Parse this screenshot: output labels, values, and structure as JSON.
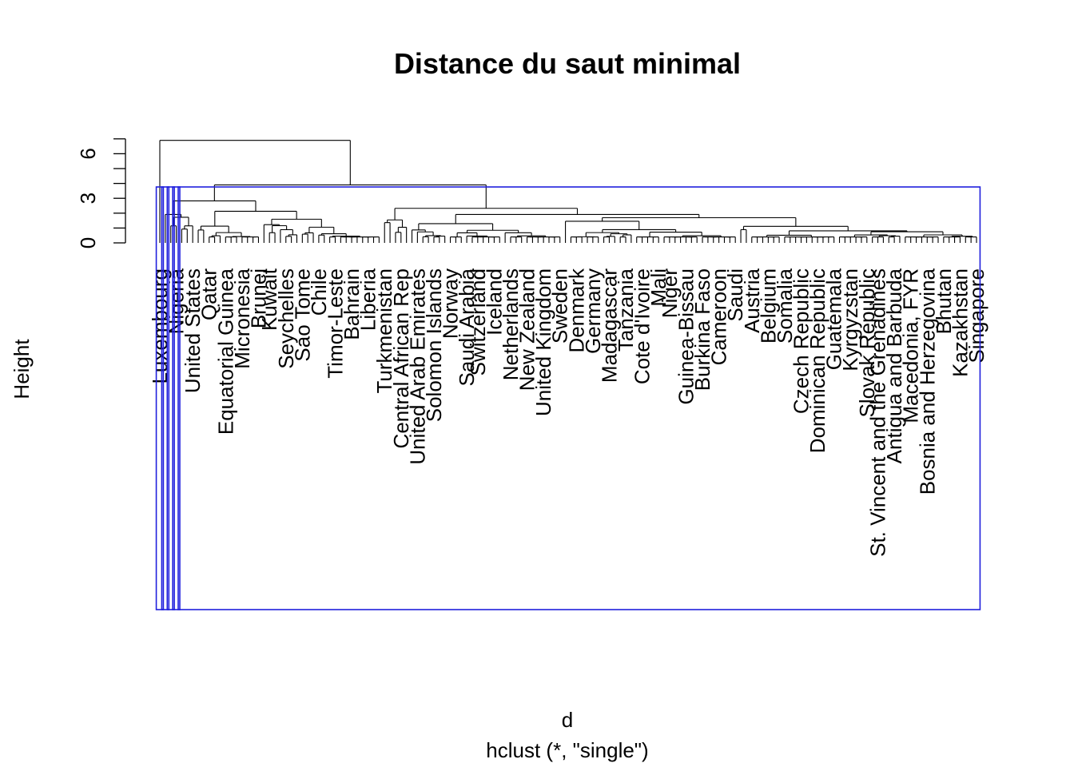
{
  "chart_data": {
    "type": "dendrogram",
    "title": "Distance du saut minimal",
    "xlabel": "d",
    "sub": "hclust (*, \"single\")",
    "ylabel": "Height",
    "ylim": [
      0,
      7
    ],
    "yticks": [
      0,
      3,
      6
    ],
    "box_color": "#2020dd",
    "leaves": [
      "Luxembourg",
      "Nigeria",
      "United States",
      "Qatar",
      "Equatorial Guinea",
      "Micronesia",
      "Brunei",
      "Kuwait",
      "Seychelles",
      "Sao Tome",
      "Chile",
      "Timor-Leste",
      "Bahrain",
      "Liberia",
      "Turkmenistan",
      "Central African Rep",
      "United Arab Emirates",
      "Solomon Islands",
      "Norway",
      "Saudi Arabia",
      "Switzerland",
      "Iceland",
      "Netherlands",
      "New Zealand",
      "United Kingdom",
      "Sweden",
      "Denmark",
      "Germany",
      "Madagascar",
      "Tanzania",
      "Cote d'Ivoire",
      "Mali",
      "Niger",
      "Guinea-Bissau",
      "Burkina Faso",
      "Cameroon",
      "Saudi",
      "Austria",
      "Belgium",
      "Somalia",
      "Czech Republic",
      "Dominican Republic",
      "Guatemala",
      "Kyrgyzstan",
      "Slovak Republic",
      "St. Vincent and the Grenadines",
      "Antigua and Barbuda",
      "Macedonia, FYR",
      "Bosnia and Herzegovina",
      "Bhutan",
      "Kazakhstan",
      "Singapore"
    ],
    "leaf_count": 150,
    "merge_heights": [
      6.9,
      3.9,
      3.7,
      3.1,
      2.4,
      1.4,
      0.9
    ]
  }
}
